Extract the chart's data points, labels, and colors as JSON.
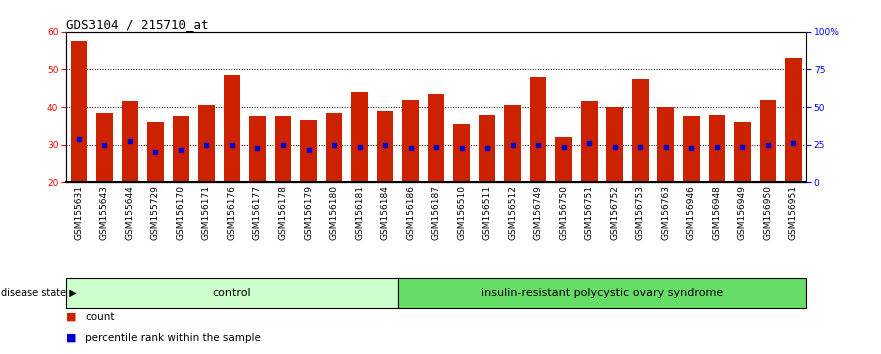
{
  "title": "GDS3104 / 215710_at",
  "categories": [
    "GSM155631",
    "GSM155643",
    "GSM155644",
    "GSM155729",
    "GSM156170",
    "GSM156171",
    "GSM156176",
    "GSM156177",
    "GSM156178",
    "GSM156179",
    "GSM156180",
    "GSM156181",
    "GSM156184",
    "GSM156186",
    "GSM156187",
    "GSM156510",
    "GSM156511",
    "GSM156512",
    "GSM156749",
    "GSM156750",
    "GSM156751",
    "GSM156752",
    "GSM156753",
    "GSM156763",
    "GSM156946",
    "GSM156948",
    "GSM156949",
    "GSM156950",
    "GSM156951"
  ],
  "bar_values": [
    57.5,
    38.5,
    41.5,
    36.0,
    37.5,
    40.5,
    48.5,
    37.5,
    37.5,
    36.5,
    38.5,
    44.0,
    39.0,
    42.0,
    43.5,
    35.5,
    38.0,
    40.5,
    48.0,
    32.0,
    41.5,
    40.0,
    47.5,
    40.0,
    37.5,
    38.0,
    36.0,
    42.0,
    53.0
  ],
  "percentile_values": [
    31.5,
    30.0,
    31.0,
    28.0,
    28.5,
    30.0,
    30.0,
    29.0,
    30.0,
    28.5,
    30.0,
    29.5,
    30.0,
    29.0,
    29.5,
    29.0,
    29.0,
    30.0,
    30.0,
    29.5,
    30.5,
    29.5,
    29.5,
    29.5,
    29.0,
    29.5,
    29.5,
    30.0,
    30.5
  ],
  "bar_color": "#CC2200",
  "percentile_color": "#0000CC",
  "control_count": 13,
  "disease_count": 16,
  "control_label": "control",
  "disease_label": "insulin-resistant polycystic ovary syndrome",
  "disease_state_label": "disease state",
  "legend_bar_label": "count",
  "legend_pct_label": "percentile rank within the sample",
  "ymin": 20,
  "ymax": 60,
  "yticks_left": [
    20,
    30,
    40,
    50,
    60
  ],
  "yticks_right": [
    0,
    25,
    50,
    75,
    100
  ],
  "bg_color": "#DCDCDC",
  "control_bg": "#CCFFCC",
  "disease_bg": "#66DD66",
  "title_fontsize": 9,
  "tick_fontsize": 6.5,
  "bar_width": 0.65
}
